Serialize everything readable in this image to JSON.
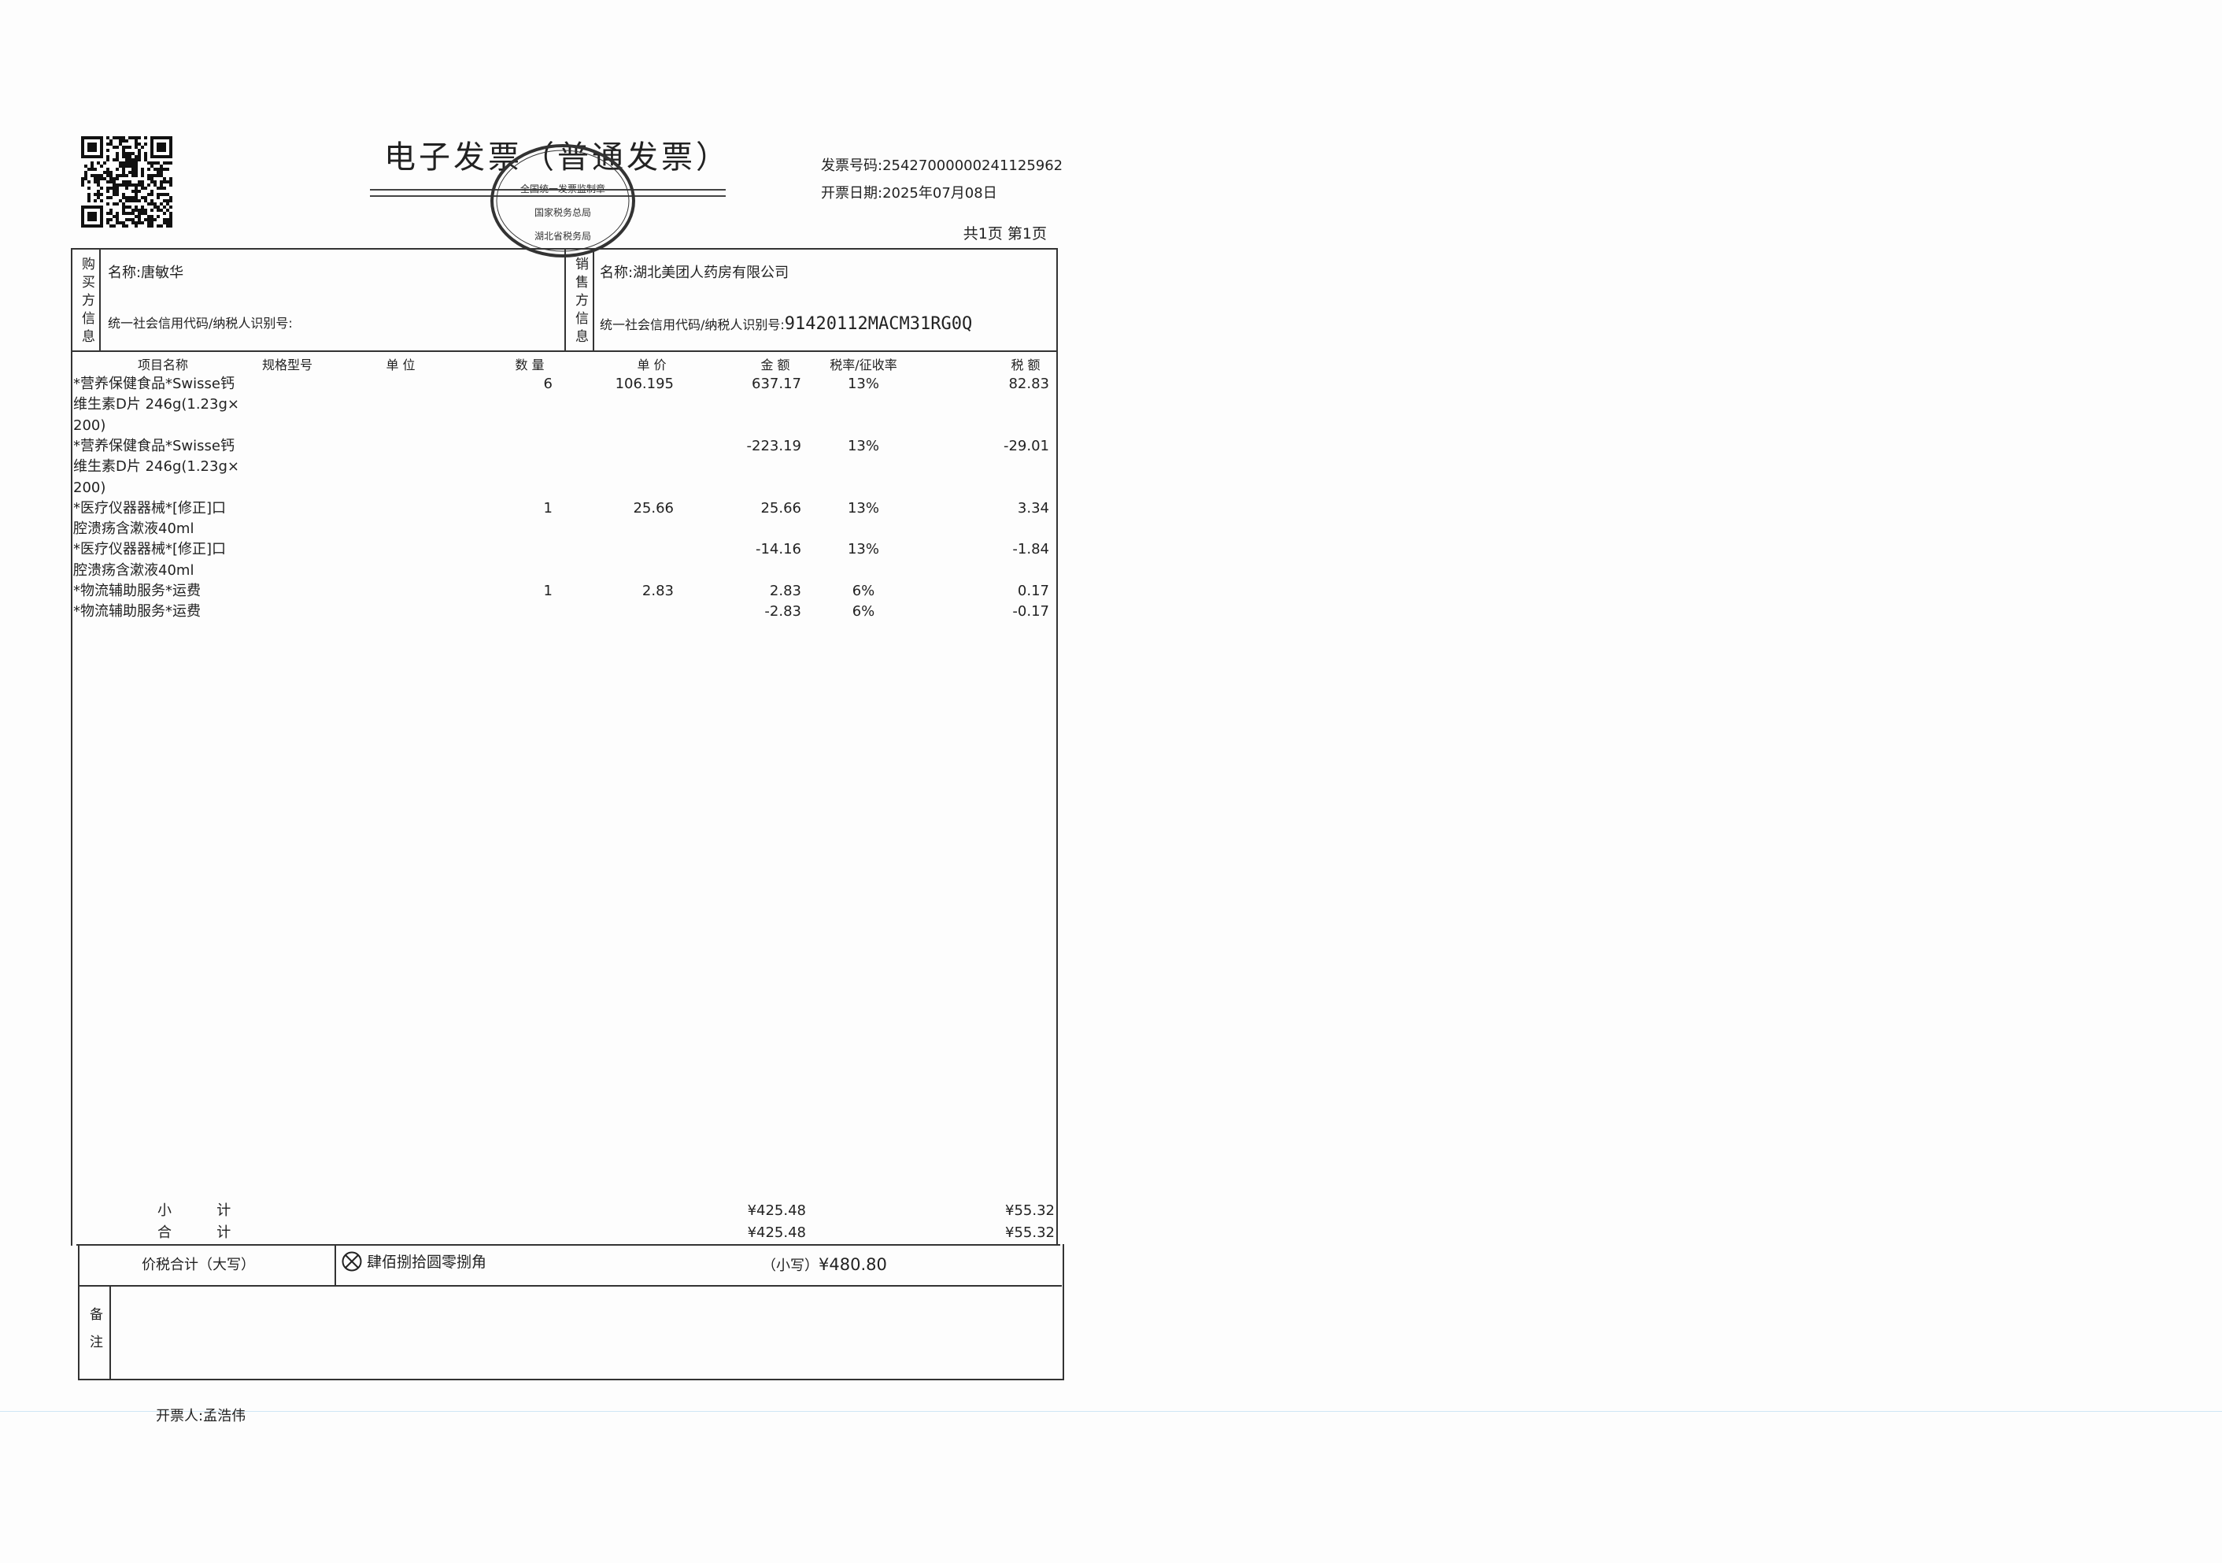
{
  "header": {
    "title": "电子发票（普通发票）",
    "invoice_number_label": "发票号码:",
    "invoice_number": "25427000000241125962",
    "issue_date_label": "开票日期:",
    "issue_date": "2025年07月08日",
    "page_info": "共1页 第1页",
    "seal": {
      "top": "全国统一发票监制章",
      "middle": "国家税务总局",
      "bottom": "湖北省税务局",
      "color": "#333333"
    }
  },
  "buyer": {
    "section_label": "购买方信息",
    "name_label": "名称:",
    "name": "唐敏华",
    "tax_id_label": "统一社会信用代码/纳税人识别号:",
    "tax_id": ""
  },
  "seller": {
    "section_label": "销售方信息",
    "name_label": "名称:",
    "name": "湖北美团人药房有限公司",
    "tax_id_label": "统一社会信用代码/纳税人识别号:",
    "tax_id": "91420112MACM31RG0Q"
  },
  "columns": {
    "name": "项目名称",
    "spec": "规格型号",
    "unit": "单 位",
    "qty": "数 量",
    "price": "单 价",
    "amount": "金 额",
    "rate": "税率/征收率",
    "tax": "税 额"
  },
  "items": [
    {
      "name_lines": [
        "*营养保健食品*Swisse钙",
        "维生素D片  246g(1.23g×",
        "200)"
      ],
      "qty": "6",
      "price": "106.195",
      "amount": "637.17",
      "rate": "13%",
      "tax": "82.83"
    },
    {
      "name_lines": [
        "*营养保健食品*Swisse钙",
        "维生素D片  246g(1.23g×",
        "200)"
      ],
      "qty": "",
      "price": "",
      "amount": "-223.19",
      "rate": "13%",
      "tax": "-29.01"
    },
    {
      "name_lines": [
        "*医疗仪器器械*[修正]口",
        "腔溃疡含漱液40ml"
      ],
      "qty": "1",
      "price": "25.66",
      "amount": "25.66",
      "rate": "13%",
      "tax": "3.34"
    },
    {
      "name_lines": [
        "*医疗仪器器械*[修正]口",
        "腔溃疡含漱液40ml"
      ],
      "qty": "",
      "price": "",
      "amount": "-14.16",
      "rate": "13%",
      "tax": "-1.84"
    },
    {
      "name_lines": [
        "*物流辅助服务*运费"
      ],
      "qty": "1",
      "price": "2.83",
      "amount": "2.83",
      "rate": "6%",
      "tax": "0.17"
    },
    {
      "name_lines": [
        "*物流辅助服务*运费"
      ],
      "qty": "",
      "price": "",
      "amount": "-2.83",
      "rate": "6%",
      "tax": "-0.17"
    }
  ],
  "totals": {
    "subtotal_label": "小          计",
    "subtotal_amount": "¥425.48",
    "subtotal_tax": "¥55.32",
    "total_label": "合          计",
    "total_amount": "¥425.48",
    "total_tax": "¥55.32",
    "grand_label": "价税合计（大写）",
    "grand_words": "肆佰捌拾圆零捌角",
    "grand_small_label": "（小写）",
    "grand_small": "¥480.80"
  },
  "remarks": {
    "label": "备注",
    "text": ""
  },
  "footer": {
    "issuer_label": "开票人:",
    "issuer": "孟浩伟"
  }
}
